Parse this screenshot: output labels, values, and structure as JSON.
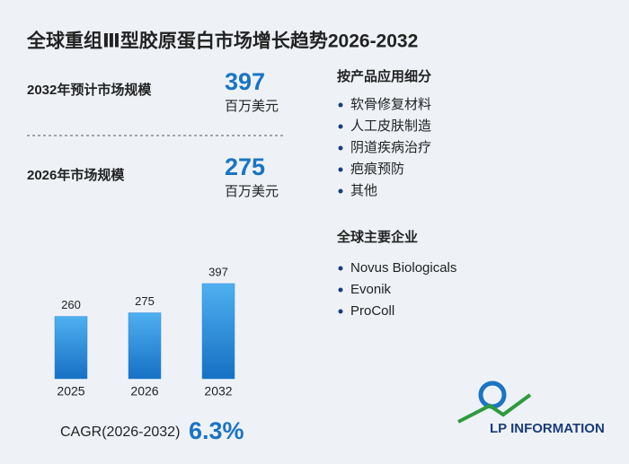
{
  "title": "全球重组Ⅲ型胶原蛋白市场增长趋势2026-2032",
  "stats": [
    {
      "label": "2032年预计市场规模",
      "value": 397,
      "unit": "百万美元"
    },
    {
      "label": "2026年市场规模",
      "value": 275,
      "unit": "百万美元"
    }
  ],
  "segments": {
    "title": "按产品应用细分",
    "items": [
      "软骨修复材料",
      "人工皮肤制造",
      "阴道疾病治疗",
      "疤痕预防",
      "其他"
    ]
  },
  "companies": {
    "title": "全球主要企业",
    "items": [
      "Novus Biologicals",
      "Evonik",
      "ProColl"
    ]
  },
  "chart_data": {
    "type": "bar",
    "categories": [
      "2025",
      "2026",
      "2032"
    ],
    "values": [
      260,
      275,
      397
    ],
    "color": "#2a86d8"
  },
  "cagr": {
    "label": "CAGR(2026-2032)",
    "value": 6.3,
    "value_label": "6.3%"
  },
  "logo": "LP INFORMATION"
}
